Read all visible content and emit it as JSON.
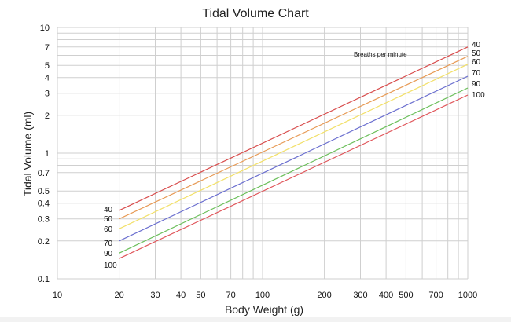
{
  "chart_data": {
    "type": "line",
    "title": "Tidal Volume Chart",
    "xlabel": "Body Weight (g)",
    "ylabel": "Tidal Volume (ml)",
    "xscale": "log",
    "yscale": "log",
    "xlim": [
      10,
      1000
    ],
    "ylim": [
      0.1,
      10
    ],
    "grid": true,
    "x_ticks": [
      "10",
      "20",
      "30",
      "40",
      "50",
      "70",
      "100",
      "200",
      "300",
      "400",
      "500",
      "700",
      "1000"
    ],
    "y_ticks": [
      "0.1",
      "0.2",
      "0.3",
      "0.4",
      "0.5",
      "0.7",
      "1",
      "2",
      "3",
      "4",
      "5",
      "7",
      "10"
    ],
    "annotation": "Breaths per minute",
    "series": [
      {
        "name": "40",
        "color": "#d84c4c",
        "x": [
          20,
          1000
        ],
        "y": [
          0.35,
          7.0
        ]
      },
      {
        "name": "50",
        "color": "#e79a55",
        "x": [
          20,
          1000
        ],
        "y": [
          0.3,
          5.9
        ]
      },
      {
        "name": "60",
        "color": "#f2e06a",
        "x": [
          20,
          1000
        ],
        "y": [
          0.25,
          5.1
        ]
      },
      {
        "name": "70",
        "color": "#6b6fcf",
        "x": [
          20,
          1000
        ],
        "y": [
          0.2,
          4.1
        ]
      },
      {
        "name": "90",
        "color": "#6bbf5a",
        "x": [
          20,
          1000
        ],
        "y": [
          0.16,
          3.3
        ]
      },
      {
        "name": "100",
        "color": "#e0555a",
        "x": [
          20,
          1000
        ],
        "y": [
          0.145,
          2.9
        ]
      }
    ]
  }
}
